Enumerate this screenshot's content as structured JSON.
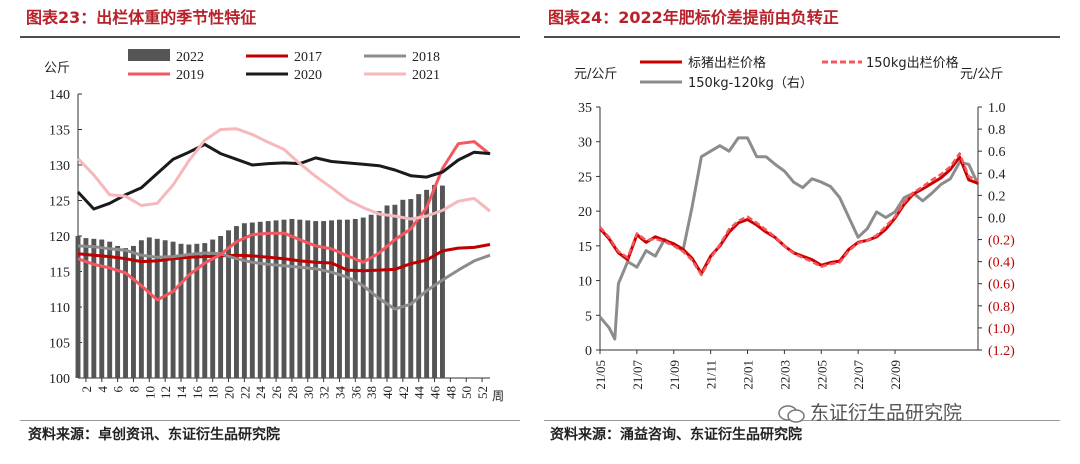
{
  "left": {
    "title": "图表23：出栏体重的季节性特征",
    "source": "资料来源：卓创资讯、东证衍生品研究院"
  },
  "right": {
    "title": "图表24：2022年肥标价差提前由负转正",
    "source": "资料来源：涌益咨询、东证衍生品研究院"
  },
  "watermark": "东证衍生品研究院",
  "colors": {
    "title": "#b7212a",
    "bar": "#555555",
    "s2017": "#c00000",
    "s2018": "#8c8c8c",
    "s2019": "#f4585e",
    "s2020": "#1a1a1a",
    "s2021": "#f7b8bc",
    "neg": "#c00000"
  },
  "chart_data": [
    {
      "type": "bar+line",
      "title": "图表23：出栏体重的季节性特征",
      "ylabel": "公斤",
      "xlabel": "周",
      "ylim": [
        100,
        140
      ],
      "yticks": [
        100,
        105,
        110,
        115,
        120,
        125,
        130,
        135,
        140
      ],
      "xlim": [
        1,
        53
      ],
      "xticks": [
        2,
        4,
        6,
        8,
        10,
        12,
        14,
        16,
        18,
        20,
        22,
        24,
        26,
        28,
        30,
        32,
        34,
        36,
        38,
        40,
        42,
        44,
        46,
        48,
        50,
        52
      ],
      "bars": {
        "name": "2022",
        "x": [
          1,
          2,
          3,
          4,
          5,
          6,
          7,
          8,
          9,
          10,
          11,
          12,
          13,
          14,
          15,
          16,
          17,
          18,
          19,
          20,
          21,
          22,
          23,
          24,
          25,
          26,
          27,
          28,
          29,
          30,
          31,
          32,
          33,
          34,
          35,
          36,
          37,
          38,
          39,
          40,
          41,
          42,
          43,
          44,
          45,
          46,
          47
        ],
        "values": [
          120,
          119.7,
          119.6,
          119.5,
          119.2,
          118.6,
          118.3,
          118.6,
          119.4,
          119.8,
          119.6,
          119.4,
          119.2,
          118.9,
          118.8,
          118.9,
          119.0,
          119.5,
          120.0,
          120.8,
          121.4,
          121.8,
          121.9,
          122.0,
          122.1,
          122.2,
          122.3,
          122.4,
          122.3,
          122.2,
          122.1,
          122.1,
          122.2,
          122.3,
          122.3,
          122.4,
          122.6,
          123.0,
          123.5,
          124.3,
          124.4,
          125.1,
          125.2,
          125.9,
          126.5,
          127.2,
          127.1
        ]
      },
      "series": [
        {
          "name": "2017",
          "x": [
            1,
            3,
            5,
            7,
            9,
            11,
            13,
            15,
            17,
            19,
            21,
            23,
            25,
            27,
            29,
            31,
            33,
            35,
            37,
            39,
            41,
            43,
            45,
            47,
            49,
            51,
            53
          ],
          "values": [
            117.5,
            117.3,
            117.1,
            116.8,
            116.4,
            116.5,
            116.8,
            117.0,
            117.1,
            117.2,
            117.3,
            117.2,
            117.0,
            116.8,
            116.5,
            116.3,
            116.2,
            115.2,
            115.1,
            115.2,
            115.3,
            116.1,
            116.6,
            117.9,
            118.3,
            118.4,
            118.8
          ]
        },
        {
          "name": "2018",
          "x": [
            1,
            3,
            5,
            7,
            9,
            11,
            13,
            15,
            17,
            19,
            21,
            23,
            25,
            27,
            29,
            31,
            33,
            35,
            37,
            39,
            41,
            43,
            45,
            47,
            49,
            51,
            53
          ],
          "values": [
            118.6,
            118.5,
            118.2,
            118.0,
            117.3,
            117.0,
            117.1,
            117.4,
            117.6,
            117.5,
            116.8,
            116.3,
            116.0,
            115.8,
            115.6,
            115.4,
            114.9,
            114.2,
            113.0,
            111.2,
            109.7,
            110.4,
            112.3,
            113.8,
            115.2,
            116.5,
            117.3
          ]
        },
        {
          "name": "2019",
          "x": [
            1,
            3,
            5,
            7,
            9,
            11,
            13,
            15,
            17,
            19,
            21,
            23,
            25,
            27,
            29,
            31,
            33,
            35,
            37,
            39,
            41,
            43,
            45,
            47,
            49,
            51,
            53
          ],
          "values": [
            116.8,
            116.0,
            115.5,
            114.8,
            113.0,
            111.0,
            112.2,
            114.5,
            116.2,
            117.4,
            119.2,
            120.2,
            120.4,
            120.4,
            119.5,
            118.6,
            118.2,
            117.2,
            116.3,
            117.6,
            119.5,
            121.0,
            124.0,
            129.5,
            133.0,
            133.3,
            131.5
          ]
        },
        {
          "name": "2020",
          "x": [
            1,
            3,
            5,
            7,
            9,
            11,
            13,
            15,
            17,
            19,
            21,
            23,
            25,
            27,
            29,
            31,
            33,
            35,
            37,
            39,
            41,
            43,
            45,
            47,
            49,
            51,
            53
          ],
          "values": [
            126.2,
            123.8,
            124.6,
            125.8,
            126.8,
            128.8,
            130.8,
            131.8,
            132.9,
            131.6,
            130.8,
            130.0,
            130.2,
            130.3,
            130.2,
            131.0,
            130.5,
            130.3,
            130.1,
            129.9,
            129.3,
            128.5,
            128.3,
            129.0,
            130.7,
            131.8,
            131.6
          ]
        },
        {
          "name": "2021",
          "x": [
            1,
            3,
            5,
            7,
            9,
            11,
            13,
            15,
            17,
            19,
            21,
            23,
            25,
            27,
            29,
            31,
            33,
            35,
            37,
            39,
            41,
            43,
            45,
            47,
            49,
            51,
            53
          ],
          "values": [
            130.9,
            128.6,
            125.8,
            125.6,
            124.3,
            124.6,
            127.2,
            130.6,
            133.5,
            135.0,
            135.1,
            134.3,
            133.2,
            132.2,
            130.2,
            128.4,
            126.8,
            125.1,
            124.0,
            123.1,
            122.8,
            122.4,
            122.8,
            123.6,
            124.9,
            125.3,
            123.5
          ]
        }
      ],
      "legend": [
        "2022",
        "2017",
        "2018",
        "2019",
        "2020",
        "2021"
      ]
    },
    {
      "type": "line",
      "title": "图表24：2022年肥标价差提前由负转正",
      "ylabel_left": "元/公斤",
      "ylabel_right": "元/公斤",
      "ylim_left": [
        0,
        35
      ],
      "yticks_left": [
        0,
        5,
        10,
        15,
        20,
        25,
        30,
        35
      ],
      "ylim_right": [
        -1.2,
        1.0
      ],
      "yticks_right": [
        "1.0",
        "0.8",
        "0.6",
        "0.4",
        "0.2",
        "0.0",
        "(0.2)",
        "(0.4)",
        "(0.6)",
        "(0.8)",
        "(1.0)",
        "(1.2)"
      ],
      "xticks": [
        "21/05",
        "21/07",
        "21/09",
        "21/11",
        "22/01",
        "22/03",
        "22/05",
        "22/07",
        "22/09"
      ],
      "xlim": [
        0,
        20.5
      ],
      "series": [
        {
          "name": "标猪出栏价格",
          "axis": "left",
          "x": [
            0,
            0.5,
            1,
            1.5,
            2,
            2.5,
            3,
            3.5,
            4,
            4.5,
            5,
            5.5,
            6,
            6.5,
            7,
            7.5,
            8,
            8.5,
            9,
            9.5,
            10,
            10.5,
            11,
            11.5,
            12,
            12.5,
            13,
            13.5,
            14,
            14.5,
            15,
            15.5,
            16,
            16.5,
            17,
            17.5,
            18,
            18.5,
            19,
            19.5,
            20,
            20.5
          ],
          "values": [
            17.5,
            16.0,
            14.0,
            13.0,
            16.6,
            15.5,
            16.3,
            15.8,
            15.3,
            14.5,
            13.2,
            11.0,
            13.5,
            15.0,
            17.0,
            18.3,
            18.8,
            18.0,
            17.0,
            16.2,
            15.0,
            14.0,
            13.5,
            13.0,
            12.2,
            12.6,
            12.8,
            14.5,
            15.5,
            15.8,
            16.3,
            17.4,
            19.0,
            21.0,
            22.5,
            23.2,
            24.0,
            24.8,
            26.0,
            27.8,
            24.5,
            24.0
          ]
        },
        {
          "name": "150kg出栏价格",
          "axis": "left",
          "dashed": true,
          "x": [
            0,
            0.5,
            1,
            1.5,
            2,
            2.5,
            3,
            3.5,
            4,
            4.5,
            5,
            5.5,
            6,
            6.5,
            7,
            7.5,
            8,
            8.5,
            9,
            9.5,
            10,
            10.5,
            11,
            11.5,
            12,
            12.5,
            13,
            13.5,
            14,
            14.5,
            15,
            15.5,
            16,
            16.5,
            17,
            17.5,
            18,
            18.5,
            19,
            19.5,
            20,
            20.5
          ],
          "values": [
            17.7,
            16.2,
            14.2,
            13.3,
            16.8,
            15.8,
            16.0,
            15.6,
            15.0,
            14.2,
            12.9,
            10.8,
            13.2,
            15.2,
            17.4,
            18.6,
            19.2,
            18.3,
            17.3,
            16.3,
            15.0,
            13.9,
            13.3,
            12.7,
            12.0,
            12.4,
            12.6,
            14.3,
            15.4,
            15.8,
            16.5,
            17.8,
            19.2,
            21.3,
            22.7,
            23.5,
            24.5,
            25.3,
            26.4,
            28.3,
            25.0,
            24.4
          ]
        },
        {
          "name": "150kg-120kg（右）",
          "axis": "right",
          "x": [
            0,
            0.5,
            0.8,
            1,
            1.5,
            2,
            2.5,
            3,
            3.5,
            4,
            4.5,
            5,
            5.5,
            6,
            6.5,
            7,
            7.5,
            8,
            8.5,
            9,
            9.5,
            10,
            10.5,
            11,
            11.5,
            12,
            12.5,
            13,
            13.5,
            14,
            14.5,
            15,
            15.5,
            16,
            16.5,
            17,
            17.5,
            18,
            18.5,
            19,
            19.5,
            20,
            20.5
          ],
          "values": [
            -0.9,
            -1.0,
            -1.1,
            -0.6,
            -0.4,
            -0.45,
            -0.3,
            -0.35,
            -0.2,
            -0.25,
            -0.3,
            0.1,
            0.55,
            0.6,
            0.65,
            0.6,
            0.72,
            0.72,
            0.55,
            0.55,
            0.48,
            0.42,
            0.32,
            0.27,
            0.35,
            0.32,
            0.28,
            0.18,
            0.0,
            -0.18,
            -0.1,
            0.05,
            0.0,
            0.05,
            0.18,
            0.22,
            0.15,
            0.22,
            0.3,
            0.35,
            0.5,
            0.48,
            0.3
          ]
        }
      ],
      "legend": [
        "标猪出栏价格",
        "150kg出栏价格",
        "150kg-120kg（右）"
      ]
    }
  ]
}
